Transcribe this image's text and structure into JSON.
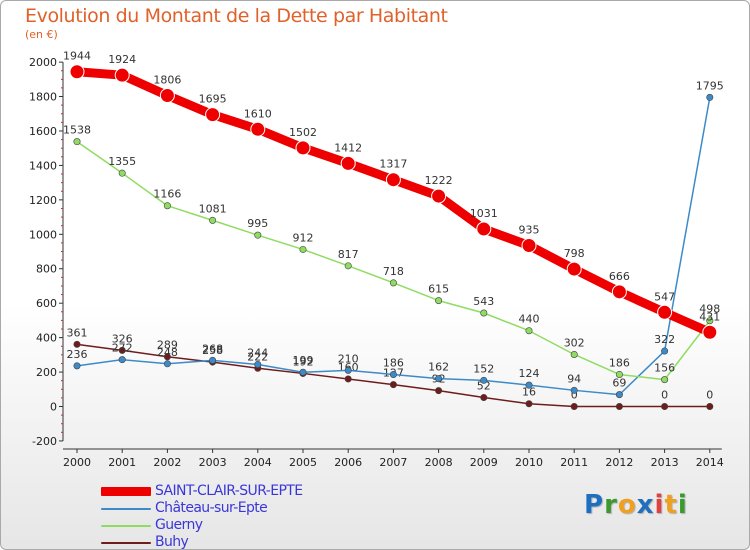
{
  "header": {
    "title": "Evolution du Montant de la Dette par Habitant",
    "subtitle": "(en €)"
  },
  "logo": {
    "letters": [
      "P",
      "r",
      "o",
      "x",
      "i",
      "t",
      "i"
    ],
    "colors": [
      "#1f6fc0",
      "#3b9a2e",
      "#f0a020",
      "#1f6fc0",
      "#e04040",
      "#f0a020",
      "#3b9a2e"
    ]
  },
  "chart_data": {
    "type": "line",
    "title": "Evolution du Montant de la Dette par Habitant",
    "subtitle": "(en €)",
    "xlabel": "",
    "ylabel": "",
    "x": [
      "2000",
      "2001",
      "2002",
      "2003",
      "2004",
      "2005",
      "2006",
      "2007",
      "2008",
      "2009",
      "2010",
      "2011",
      "2012",
      "2013",
      "2014"
    ],
    "ylim": [
      -200,
      2000
    ],
    "yticks": [
      -200,
      0,
      200,
      400,
      600,
      800,
      1000,
      1200,
      1400,
      1600,
      1800,
      2000
    ],
    "grid": false,
    "legend_position": "bottom-left",
    "series": [
      {
        "name": "Buhy",
        "color": "#6e1c1c",
        "values": [
          361,
          326,
          289,
          258,
          222,
          192,
          160,
          127,
          92,
          52,
          16,
          0,
          0,
          0,
          0
        ],
        "labels": [
          "361",
          "326",
          "289",
          "258",
          "222",
          "192",
          "160",
          "127",
          "92",
          "52",
          "16",
          "0",
          "",
          "0",
          "0"
        ]
      },
      {
        "name": "Château-sur-Epte",
        "color": "#3d8ac8",
        "values": [
          236,
          272,
          248,
          268,
          244,
          199,
          210,
          186,
          162,
          152,
          124,
          94,
          69,
          322,
          1795
        ],
        "labels": [
          "236",
          "272",
          "248",
          "268",
          "244",
          "199",
          "210",
          "186",
          "162",
          "152",
          "124",
          "94",
          "69",
          "322",
          "1795"
        ]
      },
      {
        "name": "Guerny",
        "color": "#8fdc62",
        "values": [
          1538,
          1355,
          1166,
          1081,
          995,
          912,
          817,
          718,
          615,
          543,
          440,
          302,
          186,
          156,
          498
        ],
        "labels": [
          "1538",
          "1355",
          "1166",
          "1081",
          "995",
          "912",
          "817",
          "718",
          "615",
          "543",
          "440",
          "302",
          "186",
          "156",
          "498"
        ]
      },
      {
        "name": "SAINT-CLAIR-SUR-EPTE",
        "color": "#ee0000",
        "values": [
          1944,
          1924,
          1806,
          1695,
          1610,
          1502,
          1412,
          1317,
          1222,
          1031,
          935,
          798,
          666,
          547,
          431
        ],
        "labels": [
          "1944",
          "1924",
          "1806",
          "1695",
          "1610",
          "1502",
          "1412",
          "1317",
          "1222",
          "1031",
          "935",
          "798",
          "666",
          "547",
          "431"
        ]
      }
    ],
    "legend": [
      "SAINT-CLAIR-SUR-EPTE",
      "Château-sur-Epte",
      "Guerny",
      "Buhy"
    ]
  }
}
